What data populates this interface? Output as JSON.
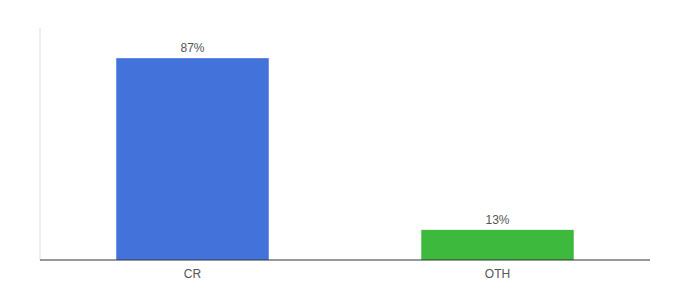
{
  "chart_data": {
    "type": "bar",
    "categories": [
      "CR",
      "OTH"
    ],
    "values": [
      87,
      13
    ],
    "value_labels": [
      "87%",
      "13%"
    ],
    "colors": [
      "#4472db",
      "#3dba3d"
    ],
    "ylim": [
      0,
      100
    ],
    "data_labels": true,
    "tick_labels": "x",
    "grid": false
  }
}
